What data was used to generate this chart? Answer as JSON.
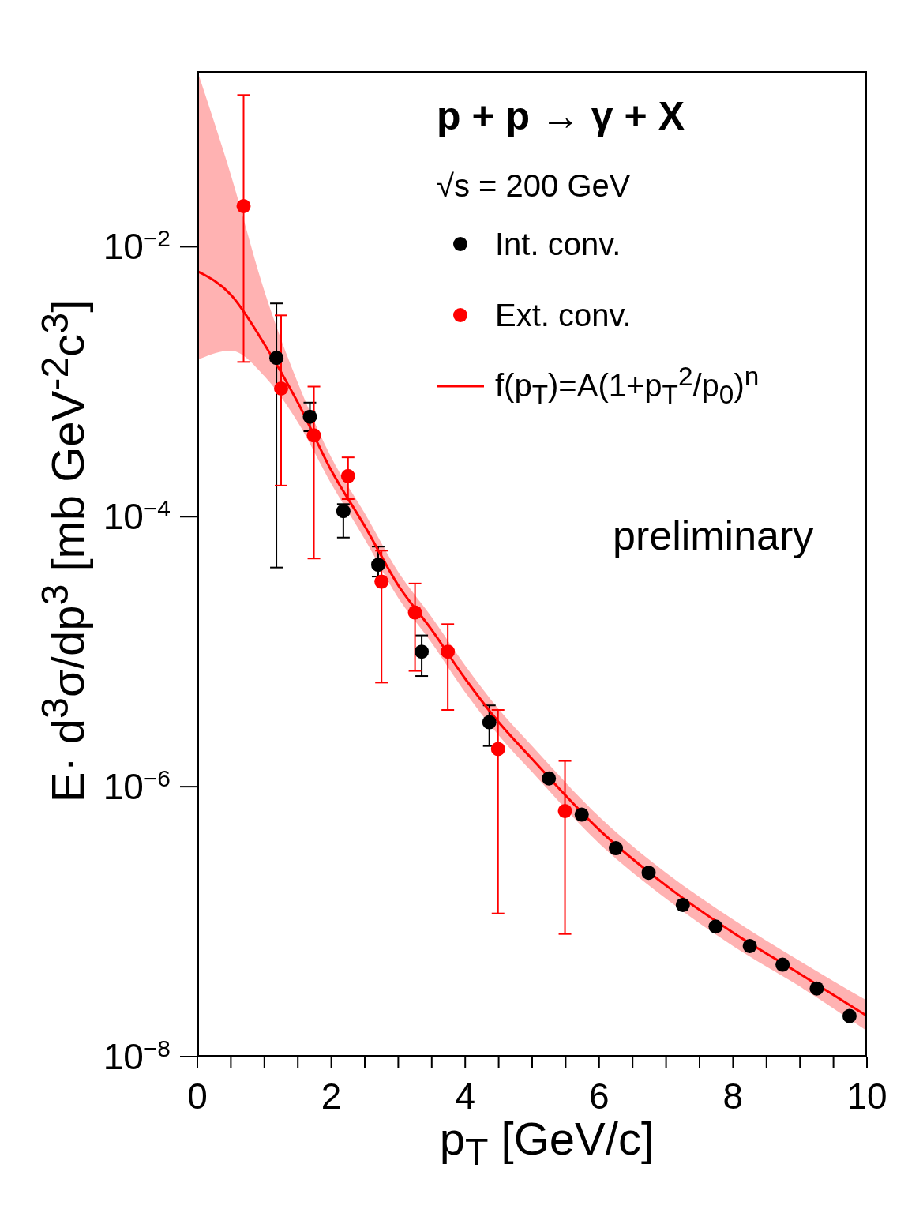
{
  "chart_data": {
    "type": "scatter",
    "xlabel": "p$_{T}$ [GeV/c]",
    "ylabel": "E· d$^{3}$σ/dp$^{3}$ [mb GeV$^{-2}$c$^{3}$]",
    "annotations": [
      "p + p → γ + X",
      "√s = 200 GeV",
      "preliminary"
    ],
    "log": "y",
    "grid": false,
    "legend": "top right",
    "marker": "circle",
    "xlim": [
      0,
      10
    ],
    "xticks": [
      0,
      {
        "value": 0.5,
        "label": null
      },
      {
        "value": 1,
        "label": null
      },
      {
        "value": 1.5,
        "label": null
      },
      2,
      {
        "value": 2.5,
        "label": null
      },
      {
        "value": 3,
        "label": null
      },
      {
        "value": 3.5,
        "label": null
      },
      4,
      {
        "value": 4.5,
        "label": null
      },
      {
        "value": 5,
        "label": null
      },
      {
        "value": 5.5,
        "label": null
      },
      6,
      {
        "value": 6.5,
        "label": null
      },
      {
        "value": 7,
        "label": null
      },
      {
        "value": 7.5,
        "label": null
      },
      8,
      {
        "value": 8.5,
        "label": null
      },
      {
        "value": 9,
        "label": null
      },
      {
        "value": 9.5,
        "label": null
      },
      10
    ],
    "ylim": [
      1e-08,
      0.2
    ],
    "yticks": [
      {
        "value": 1e-08,
        "label": "10$^{−8}$"
      },
      {
        "value": 1e-06,
        "label": "10$^{−6}$"
      },
      {
        "value": 0.0001,
        "label": "10$^{−4}$"
      },
      {
        "value": 0.01,
        "label": "10$^{−2}$"
      }
    ],
    "series": [
      {
        "name": "Int. conv.",
        "color": "#000000",
        "x": [
          1.18,
          1.68,
          2.18,
          2.7,
          3.35,
          4.36,
          5.25,
          5.74,
          6.25,
          6.74,
          7.25,
          7.74,
          8.25,
          8.74,
          9.25,
          9.74
        ],
        "values": [
          0.0015,
          0.00055,
          0.00011,
          4.4e-05,
          1e-05,
          3e-06,
          1.15e-06,
          6.2e-07,
          3.5e-07,
          2.3e-07,
          1.33e-07,
          9.2e-08,
          6.6e-08,
          4.8e-08,
          3.2e-08,
          2e-08
        ],
        "errors": [
          [
            4.2e-05,
            0.0038
          ],
          [
            0.00043,
            0.0007
          ],
          [
            7e-05,
            0.000124
          ],
          [
            3.6e-05,
            6e-05
          ],
          [
            6.6e-06,
            1.32e-05
          ],
          [
            2e-06,
            4e-06
          ],
          null,
          null,
          null,
          null,
          null,
          null,
          null,
          null,
          null,
          null
        ]
      },
      {
        "name": "Ext. conv.",
        "color": "#ff0000",
        "x": [
          0.69,
          1.25,
          1.74,
          2.25,
          2.75,
          3.25,
          3.74,
          4.49,
          5.49
        ],
        "values": [
          0.02,
          0.00089,
          0.0004,
          0.0002,
          3.3e-05,
          1.95e-05,
          1e-05,
          1.9e-06,
          6.6e-07
        ],
        "errors": [
          [
            0.0014,
            0.133
          ],
          [
            0.00017,
            0.0031
          ],
          [
            4.9e-05,
            0.00092
          ],
          [
            0.000135,
            0.000275
          ],
          [
            5.9e-06,
            5.6e-05
          ],
          [
            7.2e-06,
            3.2e-05
          ],
          [
            3.7e-06,
            1.6e-05
          ],
          [
            1.15e-07,
            3.7e-06
          ],
          [
            8.1e-08,
            1.55e-06
          ]
        ]
      },
      {
        "name": "f(p$_{T}$)=A(1+p$_{T}$$^{2}$/p$_{0}$)$^{n}$",
        "type": "line",
        "marker": "none",
        "color": "#ff0000",
        "x": [
          0,
          0.5,
          1,
          1.5,
          2,
          2.5,
          3,
          3.5,
          4,
          4.5,
          5,
          6,
          7,
          8,
          9,
          10
        ],
        "values": [
          0.0066,
          0.0044,
          0.0019,
          0.0007,
          0.00022,
          8.5e-05,
          3.1e-05,
          1.45e-05,
          6.3e-06,
          3e-06,
          1.6e-06,
          4.8e-07,
          1.85e-07,
          8.3e-08,
          4.1e-08,
          2e-08
        ],
        "lower": [
          0.00145,
          0.0017,
          0.0011,
          0.0005,
          0.000175,
          6.8e-05,
          2.5e-05,
          1.16e-05,
          5e-06,
          2.4e-06,
          1.28e-06,
          3.8e-07,
          1.48e-07,
          6.6e-08,
          3.3e-08,
          1.55e-08
        ],
        "upper": [
          0.2,
          0.034,
          0.0047,
          0.00098,
          0.000275,
          0.000106,
          3.9e-05,
          1.8e-05,
          7.9e-06,
          3.75e-06,
          2e-06,
          6e-07,
          2.3e-07,
          1.04e-07,
          5.1e-08,
          2.6e-08
        ]
      }
    ]
  }
}
